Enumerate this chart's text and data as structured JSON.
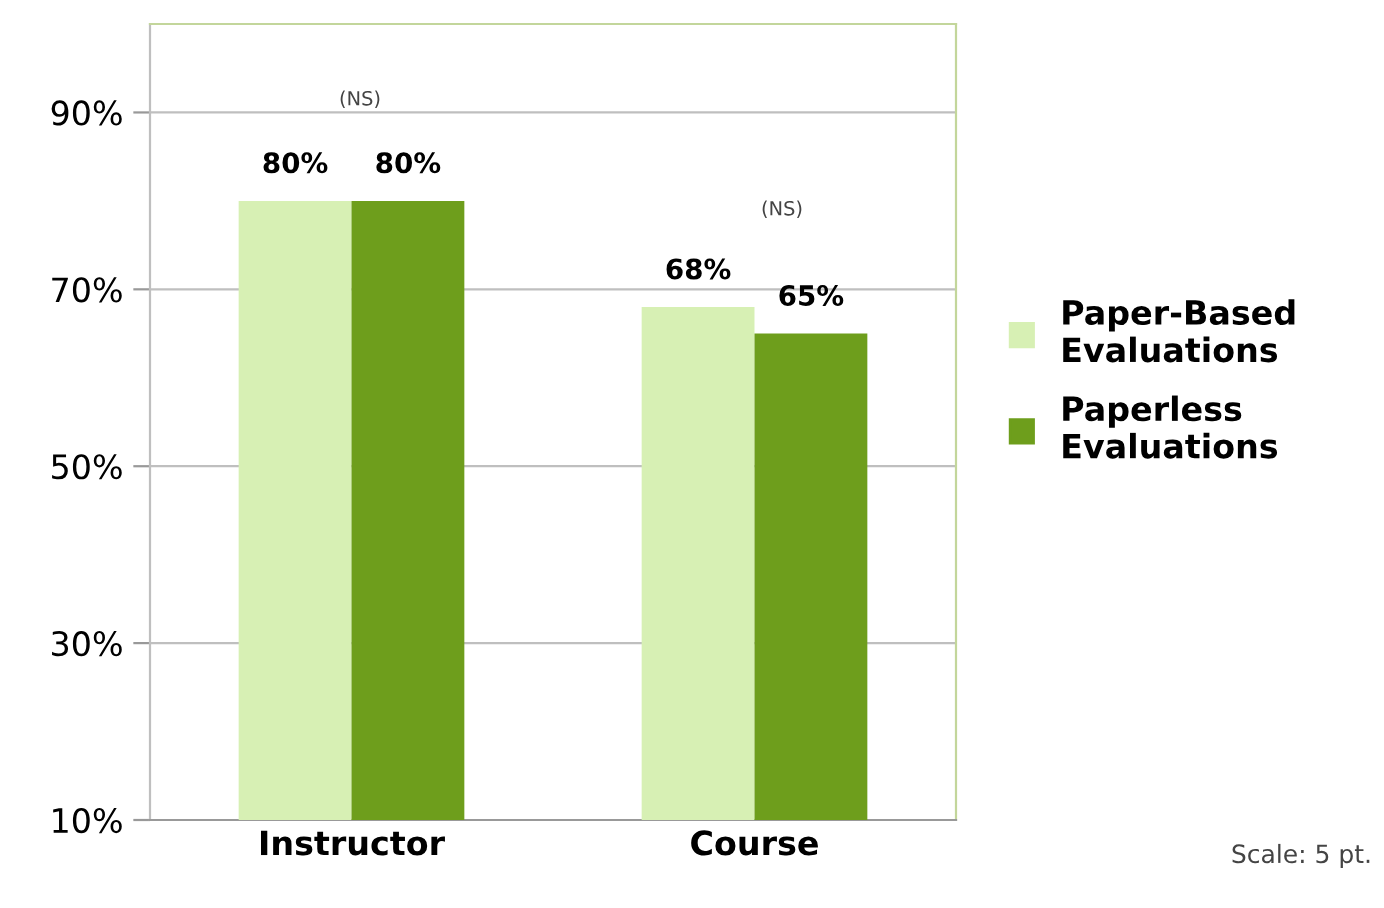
{
  "chart_data": {
    "type": "bar",
    "categories": [
      "Instructor",
      "Course"
    ],
    "series": [
      {
        "name": "Paper-Based\nEvaluations",
        "color": "#d7f0b4",
        "values": [
          80,
          68
        ],
        "value_labels": [
          "80%",
          "68%"
        ]
      },
      {
        "name": "Paperless\nEvaluations",
        "color": "#6e9e1c",
        "values": [
          80,
          65
        ],
        "value_labels": [
          "80%",
          "65%"
        ]
      }
    ],
    "ylim": [
      10,
      100
    ],
    "yticks": [
      {
        "value": 10,
        "label": "10%"
      },
      {
        "value": 30,
        "label": "30%"
      },
      {
        "value": 50,
        "label": "50%"
      },
      {
        "value": 70,
        "label": "70%"
      },
      {
        "value": 90,
        "label": "90%"
      }
    ],
    "grid": "y",
    "legend": "right",
    "annotations": [
      "(NS)",
      "(NS)",
      "Scale: 5 pt."
    ]
  }
}
